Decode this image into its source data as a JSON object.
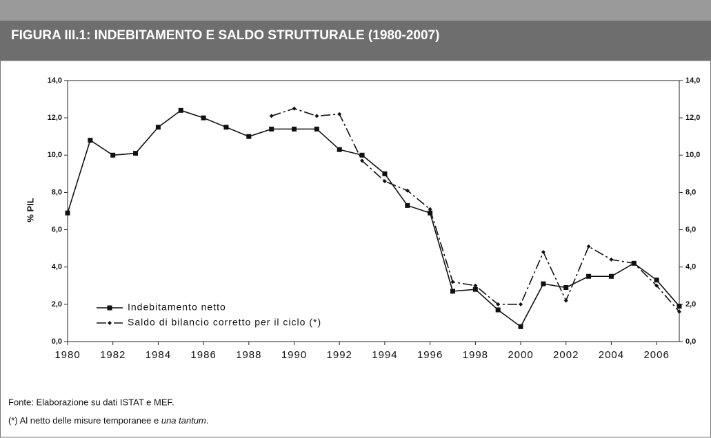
{
  "chart_data": {
    "type": "line",
    "title": "FIGURA III.1: INDEBITAMENTO E SALDO STRUTTURALE (1980-2007)",
    "ylabel": "% PIL",
    "x": [
      1980,
      1981,
      1982,
      1983,
      1984,
      1985,
      1986,
      1987,
      1988,
      1989,
      1990,
      1991,
      1992,
      1993,
      1994,
      1995,
      1996,
      1997,
      1998,
      1999,
      2000,
      2001,
      2002,
      2003,
      2004,
      2005,
      2006,
      2007
    ],
    "xlim": [
      1980,
      2007
    ],
    "xticks": [
      1980,
      1982,
      1984,
      1986,
      1988,
      1990,
      1992,
      1994,
      1996,
      1998,
      2000,
      2002,
      2004,
      2006
    ],
    "ylim": [
      0,
      14
    ],
    "yticks": [
      {
        "value": 0,
        "label": "0,0"
      },
      {
        "value": 2,
        "label": "2,0"
      },
      {
        "value": 4,
        "label": "4,0"
      },
      {
        "value": 6,
        "label": "6,0"
      },
      {
        "value": 8,
        "label": "8,0"
      },
      {
        "value": 10,
        "label": "10,0"
      },
      {
        "value": 12,
        "label": "12,0"
      },
      {
        "value": 14,
        "label": "14,0"
      }
    ],
    "y2lim": [
      0,
      14
    ],
    "y2ticks": [
      {
        "value": 0,
        "label": "0,0"
      },
      {
        "value": 2,
        "label": "2,0"
      },
      {
        "value": 4,
        "label": "4,0"
      },
      {
        "value": 6,
        "label": "6,0"
      },
      {
        "value": 8,
        "label": "8,0"
      },
      {
        "value": 10,
        "label": "10,0"
      },
      {
        "value": 12,
        "label": "12,0"
      },
      {
        "value": 14,
        "label": "14,0"
      }
    ],
    "legend": "lower left",
    "series": [
      {
        "name": "Indebitamento netto",
        "color": "#111111",
        "linestyle": "solid",
        "marker": "square",
        "values": [
          6.9,
          10.8,
          10.0,
          10.1,
          11.5,
          12.4,
          12.0,
          11.5,
          11.0,
          11.4,
          11.4,
          11.4,
          10.3,
          10.0,
          9.0,
          7.3,
          6.9,
          2.7,
          2.8,
          1.7,
          0.8,
          3.1,
          2.9,
          3.5,
          3.5,
          4.2,
          3.3,
          1.9
        ]
      },
      {
        "name": "Saldo di bilancio corretto per il ciclo (*)",
        "color": "#111111",
        "linestyle": "dashdot",
        "marker": "diamond",
        "values": [
          null,
          null,
          null,
          null,
          null,
          null,
          null,
          null,
          null,
          12.1,
          12.5,
          12.1,
          12.2,
          9.7,
          8.6,
          8.1,
          7.1,
          3.2,
          3.0,
          2.0,
          2.0,
          4.8,
          2.2,
          5.1,
          4.4,
          4.2,
          3.0,
          1.6
        ]
      }
    ],
    "source": "Fonte: Elaborazione su dati ISTAT e MEF.",
    "footnote": {
      "text": "(*) Al netto delle misure temporanee e ",
      "italic": "una tantum",
      "end": "."
    }
  }
}
